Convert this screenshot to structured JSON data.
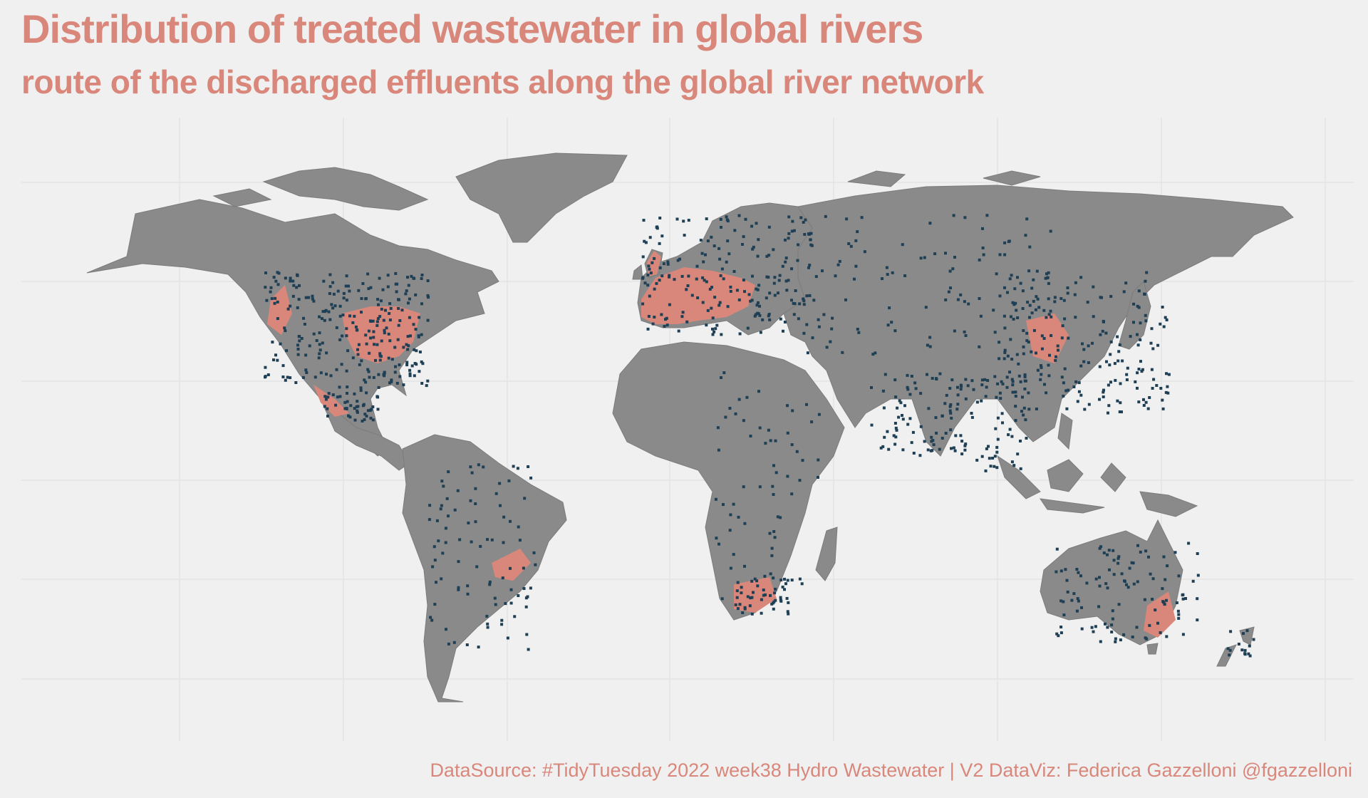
{
  "header": {
    "title": "Distribution of treated wastewater in global rivers",
    "subtitle": "route of the discharged effluents along the global river network"
  },
  "footer": {
    "caption": "DataSource: #TidyTuesday 2022 week38 Hydro Wastewater | V2 DataViz: Federica Gazzelloni @fgazzelloni"
  },
  "map": {
    "projection": "equirectangular",
    "land_color": "#8a8a8a",
    "background_color": "#f0f0f0",
    "effluent_route_color": "#d9877b",
    "treatment_plant_color": "#1f3f55",
    "gridlines": true,
    "axis_labels_shown": false
  }
}
